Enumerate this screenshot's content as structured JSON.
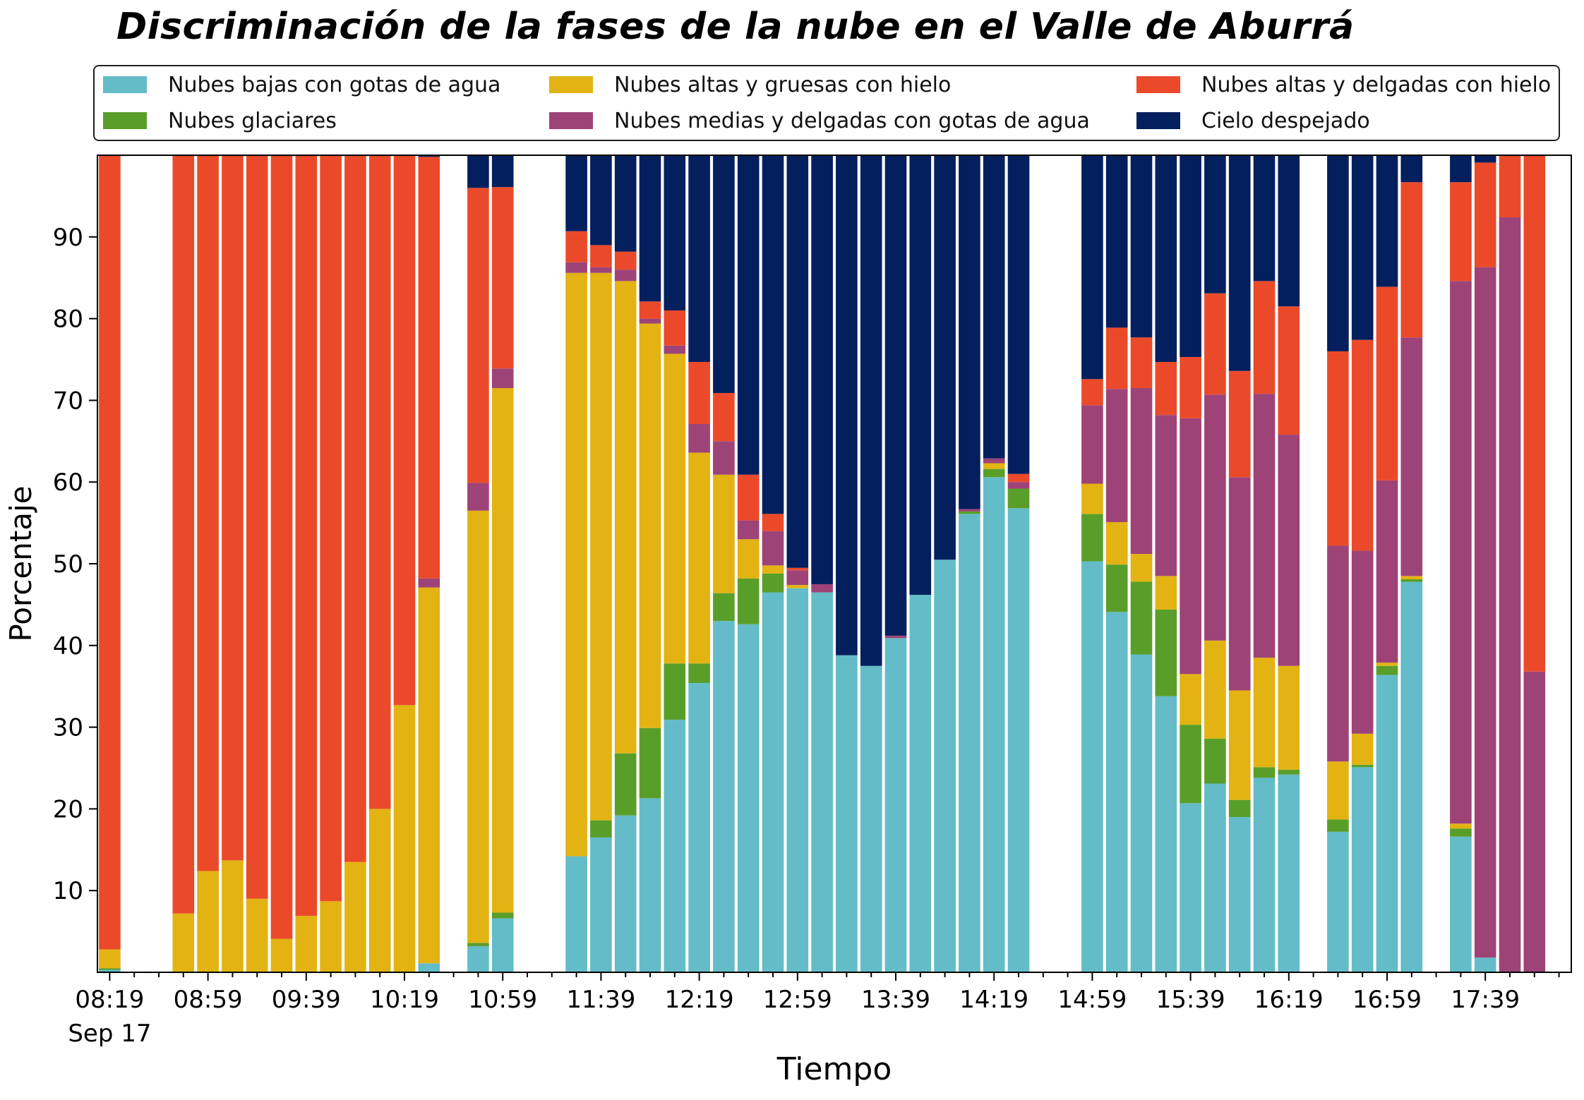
{
  "chart_data": {
    "type": "bar",
    "stacked": true,
    "title": "Discriminación de la fases de la nube en el Valle de Aburrá",
    "xlabel": "Tiempo",
    "ylabel": "Porcentaje",
    "ylim": [
      0,
      100
    ],
    "yticks": [
      10,
      20,
      30,
      40,
      50,
      60,
      70,
      80,
      90
    ],
    "xlim": [
      "08:14",
      "18:14"
    ],
    "bar_interval_minutes": 10,
    "xtick_labels": [
      {
        "time": "08:19",
        "label": "08:19",
        "sublabel": "Sep 17"
      },
      {
        "time": "08:59",
        "label": "08:59"
      },
      {
        "time": "09:39",
        "label": "09:39"
      },
      {
        "time": "10:19",
        "label": "10:19"
      },
      {
        "time": "10:59",
        "label": "10:59"
      },
      {
        "time": "11:39",
        "label": "11:39"
      },
      {
        "time": "12:19",
        "label": "12:19"
      },
      {
        "time": "12:59",
        "label": "12:59"
      },
      {
        "time": "13:39",
        "label": "13:39"
      },
      {
        "time": "14:19",
        "label": "14:19"
      },
      {
        "time": "14:59",
        "label": "14:59"
      },
      {
        "time": "15:39",
        "label": "15:39"
      },
      {
        "time": "16:19",
        "label": "16:19"
      },
      {
        "time": "16:59",
        "label": "16:59"
      },
      {
        "time": "17:39",
        "label": "17:39"
      }
    ],
    "legend_position": "top, 3 columns",
    "grid": false,
    "series": [
      {
        "name": "Nubes bajas con gotas de agua",
        "color": "#63BCC8"
      },
      {
        "name": "Nubes glaciares",
        "color": "#5A9E2A"
      },
      {
        "name": "Nubes altas y gruesas con hielo",
        "color": "#E2B312"
      },
      {
        "name": "Nubes medias y delgadas con gotas de agua",
        "color": "#9E4378"
      },
      {
        "name": "Nubes altas y delgadas con hielo",
        "color": "#EB4A2A"
      },
      {
        "name": "Cielo despejado",
        "color": "#041F5E"
      }
    ],
    "series_order_bottom_to_top": [
      "Nubes bajas con gotas de agua",
      "Nubes glaciares",
      "Nubes altas y gruesas con hielo",
      "Nubes medias y delgadas con gotas de agua",
      "Nubes altas y delgadas con hielo",
      "Cielo despejado"
    ],
    "bars": [
      {
        "time": "08:19",
        "values": [
          0.3,
          0.2,
          2.3,
          0,
          97.2,
          0
        ]
      },
      {
        "time": "08:49",
        "values": [
          0,
          0,
          7.2,
          0,
          92.8,
          0
        ]
      },
      {
        "time": "08:59",
        "values": [
          0,
          0,
          12.4,
          0,
          87.6,
          0
        ]
      },
      {
        "time": "09:09",
        "values": [
          0,
          0,
          13.7,
          0,
          86.3,
          0
        ]
      },
      {
        "time": "09:19",
        "values": [
          0,
          0,
          9.0,
          0,
          91.0,
          0
        ]
      },
      {
        "time": "09:29",
        "values": [
          0,
          0,
          4.1,
          0,
          95.9,
          0
        ]
      },
      {
        "time": "09:39",
        "values": [
          0,
          0,
          6.9,
          0,
          93.1,
          0
        ]
      },
      {
        "time": "09:49",
        "values": [
          0,
          0,
          8.7,
          0,
          91.3,
          0
        ]
      },
      {
        "time": "09:59",
        "values": [
          0,
          0,
          13.5,
          0,
          86.5,
          0
        ]
      },
      {
        "time": "10:09",
        "values": [
          0,
          0,
          20.0,
          0,
          80.0,
          0
        ]
      },
      {
        "time": "10:19",
        "values": [
          0,
          0,
          32.7,
          0,
          67.3,
          0
        ]
      },
      {
        "time": "10:29",
        "values": [
          1.1,
          0,
          46.0,
          1.1,
          51.6,
          0.2
        ]
      },
      {
        "time": "10:49",
        "values": [
          3.2,
          0.4,
          52.9,
          3.4,
          36.1,
          4.0
        ]
      },
      {
        "time": "10:59",
        "values": [
          6.6,
          0.7,
          64.2,
          2.4,
          22.2,
          3.9
        ]
      },
      {
        "time": "11:29",
        "values": [
          14.2,
          0,
          71.4,
          1.3,
          3.8,
          9.3
        ]
      },
      {
        "time": "11:39",
        "values": [
          16.5,
          2.1,
          67.0,
          0.7,
          2.7,
          11.0
        ]
      },
      {
        "time": "11:49",
        "values": [
          19.2,
          7.6,
          57.8,
          1.4,
          2.2,
          11.8
        ]
      },
      {
        "time": "11:59",
        "values": [
          21.3,
          8.6,
          49.5,
          0.6,
          2.1,
          17.9
        ]
      },
      {
        "time": "12:09",
        "values": [
          30.9,
          6.9,
          37.9,
          1.0,
          4.3,
          19.0
        ]
      },
      {
        "time": "12:19",
        "values": [
          35.4,
          2.4,
          25.8,
          3.5,
          7.6,
          25.3
        ]
      },
      {
        "time": "12:29",
        "values": [
          43.0,
          3.4,
          14.5,
          4.1,
          5.9,
          29.1
        ]
      },
      {
        "time": "12:39",
        "values": [
          42.6,
          5.6,
          4.8,
          2.3,
          5.6,
          39.1
        ]
      },
      {
        "time": "12:49",
        "values": [
          46.5,
          2.3,
          1.0,
          4.2,
          2.1,
          43.9
        ]
      },
      {
        "time": "12:59",
        "values": [
          47.0,
          0,
          0.4,
          1.8,
          0.3,
          50.5
        ]
      },
      {
        "time": "13:09",
        "values": [
          46.5,
          0,
          0,
          1.0,
          0,
          52.5
        ]
      },
      {
        "time": "13:19",
        "values": [
          38.8,
          0,
          0,
          0,
          0,
          61.2
        ]
      },
      {
        "time": "13:29",
        "values": [
          37.5,
          0,
          0,
          0,
          0,
          62.5
        ]
      },
      {
        "time": "13:39",
        "values": [
          40.9,
          0,
          0,
          0.3,
          0,
          58.8
        ]
      },
      {
        "time": "13:49",
        "values": [
          46.2,
          0,
          0,
          0,
          0,
          53.8
        ]
      },
      {
        "time": "13:59",
        "values": [
          50.5,
          0,
          0,
          0,
          0,
          49.5
        ]
      },
      {
        "time": "14:09",
        "values": [
          56.1,
          0.3,
          0,
          0.3,
          0,
          43.3
        ]
      },
      {
        "time": "14:19",
        "values": [
          60.6,
          1.0,
          0.7,
          0.6,
          0,
          37.1
        ]
      },
      {
        "time": "14:29",
        "values": [
          56.8,
          2.4,
          0,
          0.8,
          1.0,
          39.0
        ]
      },
      {
        "time": "14:59",
        "values": [
          50.3,
          5.8,
          3.7,
          9.6,
          3.2,
          27.4
        ]
      },
      {
        "time": "15:09",
        "values": [
          44.1,
          5.8,
          5.2,
          16.3,
          7.5,
          21.1
        ]
      },
      {
        "time": "15:19",
        "values": [
          38.9,
          8.9,
          3.4,
          20.3,
          6.2,
          22.3
        ]
      },
      {
        "time": "15:29",
        "values": [
          33.8,
          10.6,
          4.1,
          19.7,
          6.5,
          25.3
        ]
      },
      {
        "time": "15:39",
        "values": [
          20.7,
          9.6,
          6.2,
          31.3,
          7.5,
          24.7
        ]
      },
      {
        "time": "15:49",
        "values": [
          23.1,
          5.5,
          12.0,
          30.1,
          12.4,
          16.9
        ]
      },
      {
        "time": "15:59",
        "values": [
          19.0,
          2.1,
          13.4,
          26.1,
          13.0,
          26.4
        ]
      },
      {
        "time": "16:09",
        "values": [
          23.8,
          1.3,
          13.4,
          32.3,
          13.8,
          15.4
        ]
      },
      {
        "time": "16:19",
        "values": [
          24.2,
          0.6,
          12.7,
          28.3,
          15.7,
          18.5
        ]
      },
      {
        "time": "16:39",
        "values": [
          17.2,
          1.5,
          7.1,
          26.4,
          23.8,
          24.0
        ]
      },
      {
        "time": "16:49",
        "values": [
          25.1,
          0.3,
          3.8,
          22.4,
          25.8,
          22.6
        ]
      },
      {
        "time": "16:59",
        "values": [
          36.4,
          1.1,
          0.4,
          22.3,
          23.7,
          16.1
        ]
      },
      {
        "time": "17:09",
        "values": [
          47.8,
          0.3,
          0.4,
          29.2,
          19.0,
          3.3
        ]
      },
      {
        "time": "17:29",
        "values": [
          16.6,
          1.0,
          0.6,
          66.4,
          12.1,
          3.3
        ]
      },
      {
        "time": "17:39",
        "values": [
          1.8,
          0,
          0,
          84.5,
          12.8,
          0.9
        ]
      },
      {
        "time": "17:49",
        "values": [
          0,
          0,
          0,
          92.4,
          7.6,
          0
        ]
      },
      {
        "time": "17:59",
        "values": [
          0,
          0,
          0,
          36.8,
          63.2,
          0
        ]
      }
    ]
  }
}
